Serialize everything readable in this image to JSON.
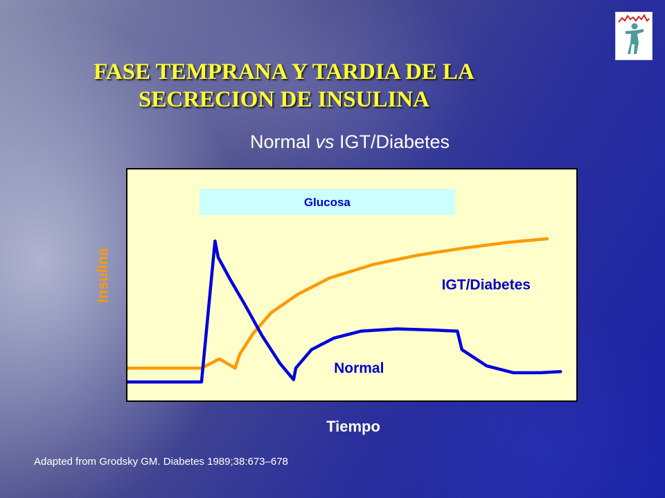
{
  "title_line1": "FASE TEMPRANA Y TARDIA DE LA",
  "title_line2": "SECRECION DE INSULINA",
  "subtitle_part1": "Normal ",
  "subtitle_italic": "vs",
  "subtitle_part2": " IGT/Diabetes",
  "source": "Adapted from Grodsky GM. Diabetes 1989;38:673–678",
  "chart_data": {
    "type": "line",
    "title": "",
    "xlabel": "Tiempo",
    "ylabel": "Insulina",
    "axis_ticks": false,
    "xlim": [
      0,
      100
    ],
    "ylim": [
      0,
      100
    ],
    "glucose_bar": {
      "label": "Glucosa",
      "x_start": 16,
      "x_end": 73,
      "color": "#ccffff",
      "text_color": "#0000cc"
    },
    "series": [
      {
        "name": "Normal",
        "color": "#0000dd",
        "x": [
          0,
          16.5,
          19.5,
          20.2,
          23,
          26,
          30,
          34,
          37,
          37.5,
          41,
          46,
          52,
          60,
          68,
          73.5,
          74.5,
          80,
          86,
          92,
          96.5
        ],
        "y": [
          8,
          8,
          69,
          62,
          52,
          42,
          28,
          16,
          9,
          14,
          22,
          27,
          30,
          31,
          30.5,
          30,
          22,
          15,
          12,
          12,
          12.5
        ]
      },
      {
        "name": "IGT/Diabetes",
        "color": "#ff9900",
        "x": [
          0,
          16.5,
          20.5,
          24,
          25,
          28,
          32,
          38,
          45,
          55,
          65,
          75,
          85,
          93.5
        ],
        "y": [
          14,
          14,
          18,
          14,
          20,
          29,
          38,
          46,
          53,
          59,
          63,
          66,
          68.5,
          70
        ]
      }
    ],
    "annotations": [
      {
        "text": "IGT/Diabetes",
        "color": "#0000cc",
        "x": 70,
        "y": 48
      },
      {
        "text": "Normal",
        "color": "#0000cc",
        "x": 46,
        "y": 12
      }
    ]
  }
}
